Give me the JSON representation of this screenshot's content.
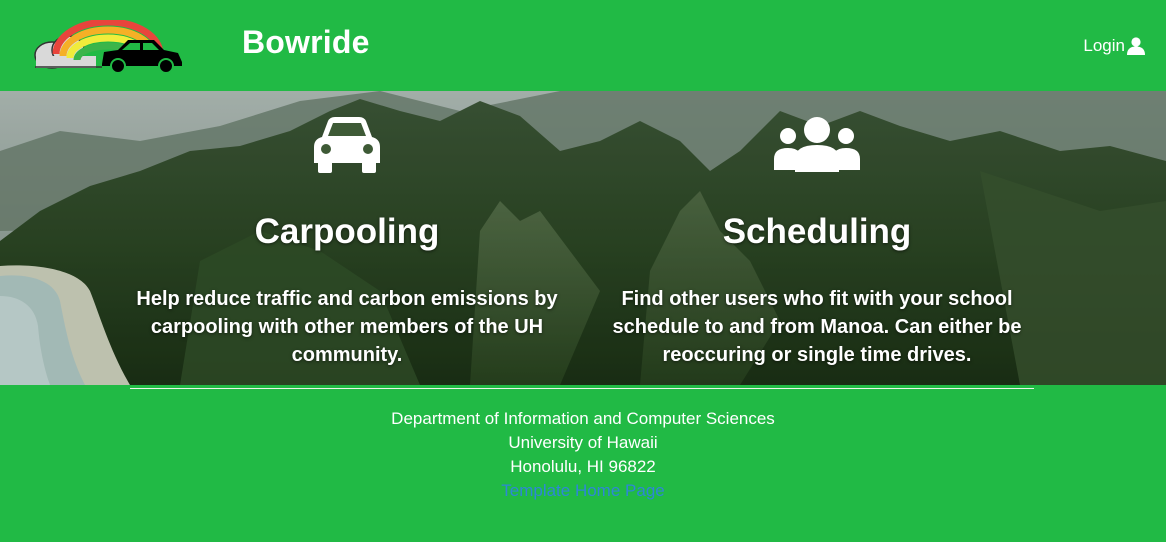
{
  "navbar": {
    "brand": "Bowride",
    "login_label": "Login",
    "logo_icon": "rainbow-car-logo",
    "user_icon": "user-icon"
  },
  "features": [
    {
      "icon": "car-icon",
      "title": "Carpooling",
      "description": "Help reduce traffic and carbon emissions by carpooling with other members of the UH community."
    },
    {
      "icon": "users-icon",
      "title": "Scheduling",
      "description": "Find other users who fit with your school schedule to and from Manoa. Can either be reoccuring or single time drives."
    }
  ],
  "footer": {
    "department": "Department of Information and Computer Sciences",
    "university": "University of Hawaii",
    "address": "Honolulu, HI 96822",
    "link_label": "Template Home Page"
  },
  "colors": {
    "brand_green": "#21ba45",
    "link_blue": "#2e87d6"
  }
}
